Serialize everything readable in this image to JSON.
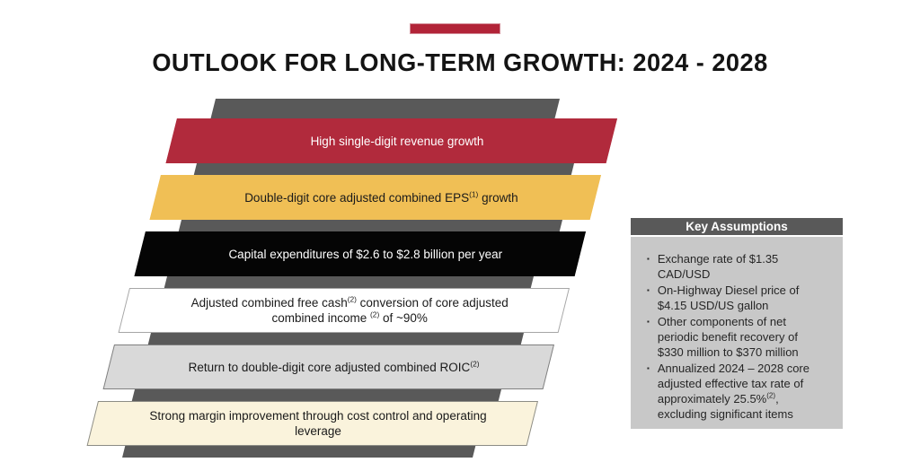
{
  "slide": {
    "title": "OUTLOOK FOR LONG-TERM GROWTH: 2024 - 2028"
  },
  "colors": {
    "accent_red": "#b22438",
    "shadow_gray": "#595959",
    "title_text": "#141414"
  },
  "bars": [
    {
      "name": "revenue-growth",
      "fill": "#b12a3c",
      "border": "#b12a3c",
      "text_color": "#ffffff",
      "segments": [
        {
          "t": "High single-digit revenue growth"
        }
      ]
    },
    {
      "name": "eps-growth",
      "fill": "#f0bf55",
      "border": "#f0bf55",
      "text_color": "#1a1a1a",
      "segments": [
        {
          "t": "Double-digit core adjusted combined EPS"
        },
        {
          "t": "(1)",
          "sup": true
        },
        {
          "t": " growth"
        }
      ]
    },
    {
      "name": "capital-expenditures",
      "fill": "#050505",
      "border": "#050505",
      "text_color": "#ffffff",
      "segments": [
        {
          "t": "Capital expenditures of $2.6 to $2.8 billion per year"
        }
      ]
    },
    {
      "name": "free-cash-conversion",
      "fill": "#ffffff",
      "border": "#a6a6a6",
      "text_color": "#1a1a1a",
      "segments": [
        {
          "t": "Adjusted combined free cash"
        },
        {
          "t": "(2)",
          "sup": true
        },
        {
          "t": " conversion of core adjusted"
        },
        {
          "br": true
        },
        {
          "t": "combined income "
        },
        {
          "t": "(2)",
          "sup": true
        },
        {
          "t": " of ~90%"
        }
      ]
    },
    {
      "name": "roic",
      "fill": "#d9d9d9",
      "border": "#7f7f7f",
      "text_color": "#1a1a1a",
      "segments": [
        {
          "t": "Return to double-digit core adjusted combined ROIC"
        },
        {
          "t": "(2)",
          "sup": true
        }
      ]
    },
    {
      "name": "margin-improvement",
      "fill": "#faf3dc",
      "border": "#8c8c85",
      "text_color": "#1a1a1a",
      "segments": [
        {
          "t": "Strong margin improvement through cost control and operating"
        },
        {
          "br": true
        },
        {
          "t": "leverage"
        }
      ]
    }
  ],
  "assumptions": {
    "header": "Key Assumptions",
    "header_bg": "#595959",
    "header_text_color": "#ffffff",
    "body_bg": "#c8c8c8",
    "bullet_glyph": "▪",
    "items": [
      [
        {
          "t": "Exchange rate of $1.35"
        },
        {
          "br": true
        },
        {
          "t": "CAD/USD"
        }
      ],
      [
        {
          "t": "On-Highway Diesel price of"
        },
        {
          "br": true
        },
        {
          "t": "$4.15 USD/US gallon"
        }
      ],
      [
        {
          "t": "Other components of net"
        },
        {
          "br": true
        },
        {
          "t": "periodic benefit recovery of"
        },
        {
          "br": true
        },
        {
          "t": "$330 million to $370 million"
        }
      ],
      [
        {
          "t": "Annualized 2024 – 2028 core"
        },
        {
          "br": true
        },
        {
          "t": "adjusted effective tax rate of"
        },
        {
          "br": true
        },
        {
          "t": "approximately 25.5%"
        },
        {
          "t": "(2)",
          "sup": true
        },
        {
          "t": ","
        },
        {
          "br": true
        },
        {
          "t": "excluding significant items"
        }
      ]
    ]
  }
}
